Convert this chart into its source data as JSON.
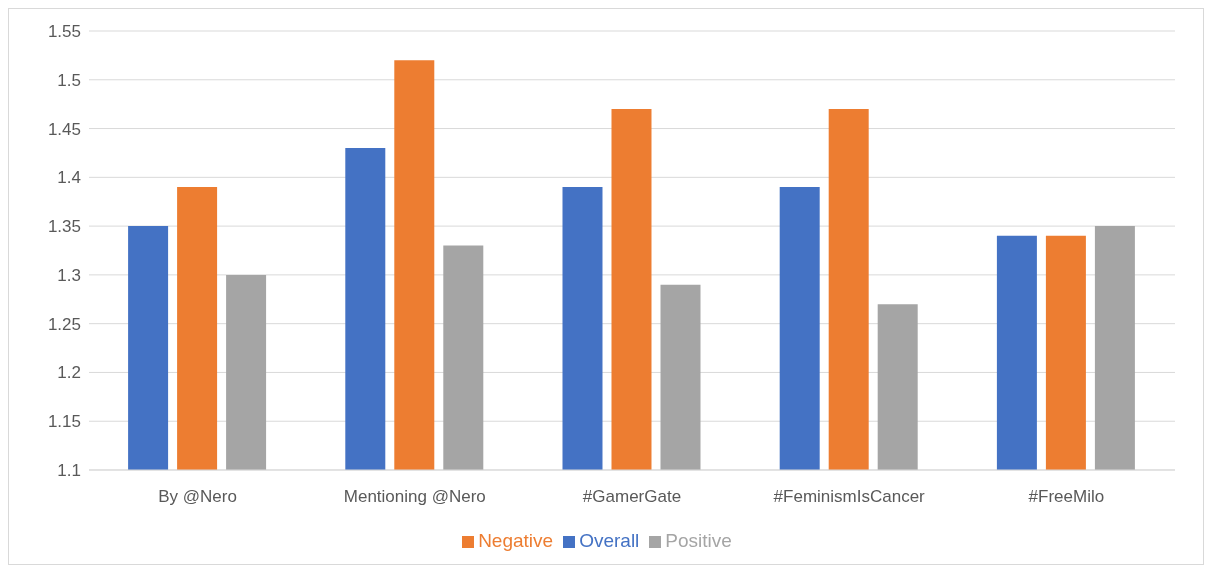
{
  "chart_data": {
    "type": "bar",
    "categories": [
      "By @Nero",
      "Mentioning @Nero",
      "#GamerGate",
      "#FeminismIsCancer",
      "#FreeMilo"
    ],
    "series": [
      {
        "name": "Overall",
        "color": "#4472c4",
        "values": [
          1.35,
          1.43,
          1.39,
          1.39,
          1.34
        ]
      },
      {
        "name": "Negative",
        "color": "#ed7d31",
        "values": [
          1.39,
          1.52,
          1.47,
          1.47,
          1.34
        ]
      },
      {
        "name": "Positive",
        "color": "#a5a5a5",
        "values": [
          1.3,
          1.33,
          1.29,
          1.27,
          1.35
        ]
      }
    ],
    "ylim": [
      1.1,
      1.55
    ],
    "yticks": [
      1.1,
      1.15,
      1.2,
      1.25,
      1.3,
      1.35,
      1.4,
      1.45,
      1.5,
      1.55
    ],
    "grid": "y",
    "legend": "bottom"
  }
}
